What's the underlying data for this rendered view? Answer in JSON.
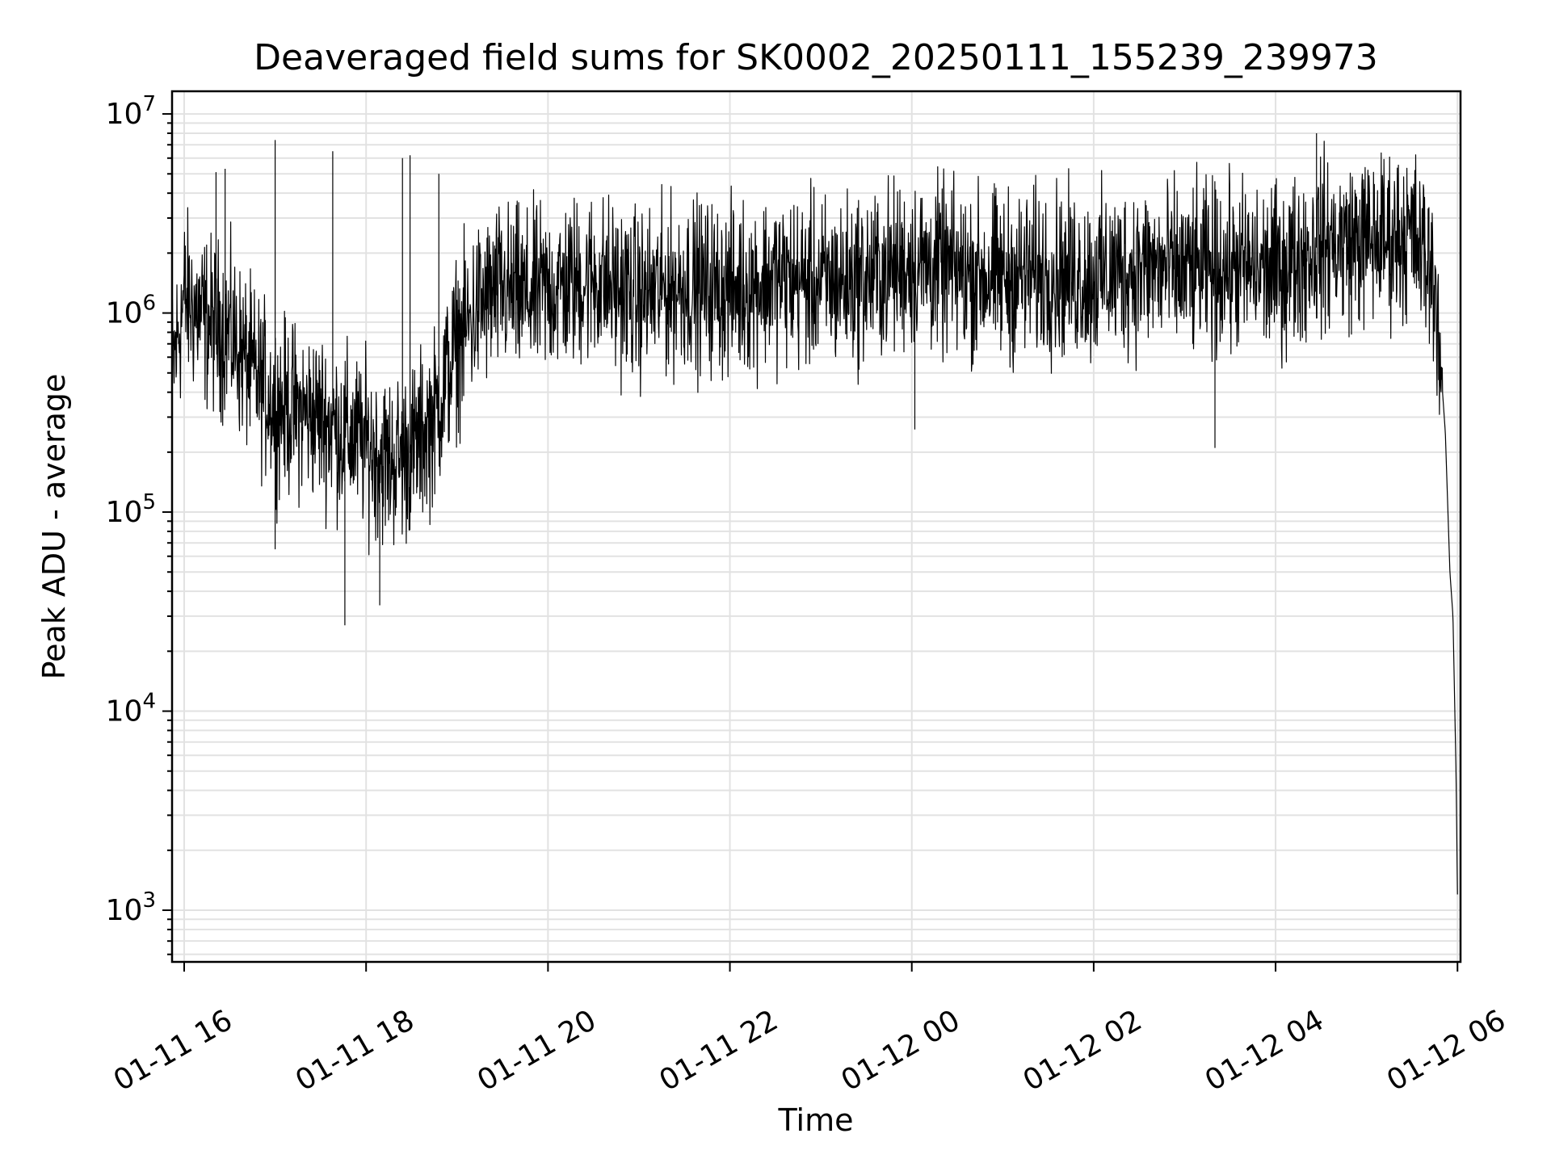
{
  "chart_data": {
    "type": "line",
    "title": "Deaveraged field sums for SK0002_20250111_155239_239973",
    "xlabel": "Time",
    "ylabel": "Peak ADU - average",
    "y_scale": "log",
    "grid": true,
    "ylim": [
      550,
      13000000
    ],
    "xlim": [
      "2025-01-11T15:52",
      "2025-01-12T06:02"
    ],
    "x_ticks": [
      {
        "value": "2025-01-11T16:00",
        "label": "01-11 16"
      },
      {
        "value": "2025-01-11T18:00",
        "label": "01-11 18"
      },
      {
        "value": "2025-01-11T20:00",
        "label": "01-11 20"
      },
      {
        "value": "2025-01-11T22:00",
        "label": "01-11 22"
      },
      {
        "value": "2025-01-12T00:00",
        "label": "01-12 00"
      },
      {
        "value": "2025-01-12T02:00",
        "label": "01-12 02"
      },
      {
        "value": "2025-01-12T04:00",
        "label": "01-12 04"
      },
      {
        "value": "2025-01-12T06:00",
        "label": "01-12 06"
      }
    ],
    "y_ticks": [
      {
        "value": 1000,
        "base": "10",
        "exp": "3"
      },
      {
        "value": 10000,
        "base": "10",
        "exp": "4"
      },
      {
        "value": 100000,
        "base": "10",
        "exp": "5"
      },
      {
        "value": 1000000,
        "base": "10",
        "exp": "6"
      },
      {
        "value": 10000000,
        "base": "10",
        "exp": "7"
      }
    ],
    "series": [
      {
        "color": "#000000",
        "points": [
          [
            "2025-01-11T15:52",
            500000
          ],
          [
            "2025-01-11T16:00",
            1200000
          ],
          [
            "2025-01-11T16:15",
            900000
          ],
          [
            "2025-01-11T16:30",
            800000
          ],
          [
            "2025-01-11T16:45",
            500000
          ],
          [
            "2025-01-11T17:00",
            350000
          ],
          [
            "2025-01-11T17:15",
            320000
          ],
          [
            "2025-01-11T17:30",
            300000
          ],
          [
            "2025-01-11T17:45",
            250000
          ],
          [
            "2025-01-11T18:00",
            220000
          ],
          [
            "2025-01-11T18:15",
            180000
          ],
          [
            "2025-01-11T18:30",
            200000
          ],
          [
            "2025-01-11T18:45",
            300000
          ],
          [
            "2025-01-11T19:00",
            700000
          ],
          [
            "2025-01-11T19:15",
            1100000
          ],
          [
            "2025-01-11T19:30",
            1300000
          ],
          [
            "2025-01-11T19:45",
            1200000
          ],
          [
            "2025-01-11T20:00",
            1300000
          ],
          [
            "2025-01-11T20:30",
            1500000
          ],
          [
            "2025-01-11T21:00",
            1200000
          ],
          [
            "2025-01-11T21:30",
            1400000
          ],
          [
            "2025-01-11T22:00",
            1300000
          ],
          [
            "2025-01-11T22:30",
            1500000
          ],
          [
            "2025-01-11T23:00",
            1400000
          ],
          [
            "2025-01-11T23:30",
            1500000
          ],
          [
            "2025-01-12T00:00",
            1800000
          ],
          [
            "2025-01-12T00:30",
            1600000
          ],
          [
            "2025-01-12T01:00",
            1500000
          ],
          [
            "2025-01-12T01:30",
            1600000
          ],
          [
            "2025-01-12T02:00",
            1500000
          ],
          [
            "2025-01-12T02:30",
            1700000
          ],
          [
            "2025-01-12T03:00",
            1600000
          ],
          [
            "2025-01-12T03:30",
            1700000
          ],
          [
            "2025-01-12T04:00",
            1600000
          ],
          [
            "2025-01-12T04:30",
            2200000
          ],
          [
            "2025-01-12T05:00",
            2300000
          ],
          [
            "2025-01-12T05:30",
            2500000
          ],
          [
            "2025-01-12T05:45",
            1500000
          ],
          [
            "2025-01-12T05:52",
            250000
          ],
          [
            "2025-01-12T05:55",
            50000
          ],
          [
            "2025-01-12T05:57",
            30000
          ],
          [
            "2025-01-12T05:59",
            5000
          ],
          [
            "2025-01-12T06:00",
            1200
          ]
        ],
        "spikes": [
          [
            "2025-01-11T16:21",
            5100000
          ],
          [
            "2025-01-11T16:27",
            5300000
          ],
          [
            "2025-01-11T17:00",
            7400000
          ],
          [
            "2025-01-11T17:38",
            6500000
          ],
          [
            "2025-01-11T18:24",
            6000000
          ],
          [
            "2025-01-11T18:29",
            6200000
          ],
          [
            "2025-01-11T18:48",
            5000000
          ],
          [
            "2025-01-12T04:27",
            8000000
          ],
          [
            "2025-01-11T17:46",
            27000
          ],
          [
            "2025-01-11T18:09",
            34000
          ],
          [
            "2025-01-11T17:00",
            65000
          ],
          [
            "2025-01-12T03:20",
            210000
          ],
          [
            "2025-01-12T00:02",
            260000
          ]
        ]
      }
    ]
  }
}
